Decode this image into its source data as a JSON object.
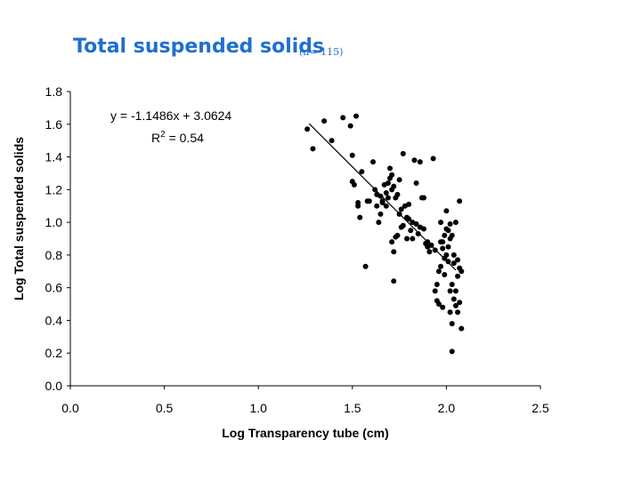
{
  "slide": {
    "title": "Total suspended solids",
    "subtitle": "(n= 115)",
    "title_color": "#1f6fd0"
  },
  "chart_data": {
    "type": "scatter",
    "title": "",
    "xlabel": "Log Transparency tube (cm)",
    "ylabel": "Log Total suspended solids",
    "xlim": [
      0.0,
      2.5
    ],
    "ylim": [
      0.0,
      1.8
    ],
    "xticks": [
      "0.0",
      "0.5",
      "1.0",
      "1.5",
      "2.0",
      "2.5"
    ],
    "yticks": [
      "0.0",
      "0.2",
      "0.4",
      "0.6",
      "0.8",
      "1.0",
      "1.2",
      "1.4",
      "1.6",
      "1.8"
    ],
    "grid": false,
    "legend": "none",
    "trendline": {
      "slope": -1.1486,
      "intercept": 3.0624,
      "x_range": [
        1.27,
        2.05
      ],
      "equation": "y = -1.1486x + 3.0624",
      "r2_prefix": "R",
      "r2_sup": "2",
      "r2_suffix": " = 0.54"
    },
    "marker_color": "#000000",
    "points": [
      [
        1.26,
        1.57
      ],
      [
        1.29,
        1.45
      ],
      [
        1.35,
        1.62
      ],
      [
        1.39,
        1.5
      ],
      [
        1.45,
        1.64
      ],
      [
        1.49,
        1.59
      ],
      [
        1.52,
        1.65
      ],
      [
        1.5,
        1.41
      ],
      [
        1.5,
        1.25
      ],
      [
        1.51,
        1.23
      ],
      [
        1.53,
        1.1
      ],
      [
        1.55,
        1.31
      ],
      [
        1.54,
        1.03
      ],
      [
        1.57,
        0.73
      ],
      [
        1.59,
        1.13
      ],
      [
        1.61,
        1.37
      ],
      [
        1.62,
        1.2
      ],
      [
        1.63,
        1.1
      ],
      [
        1.64,
        1.0
      ],
      [
        1.65,
        1.16
      ],
      [
        1.66,
        1.12
      ],
      [
        1.67,
        1.23
      ],
      [
        1.68,
        1.1
      ],
      [
        1.69,
        1.24
      ],
      [
        1.7,
        1.33
      ],
      [
        1.7,
        1.27
      ],
      [
        1.71,
        1.2
      ],
      [
        1.72,
        1.22
      ],
      [
        1.73,
        1.15
      ],
      [
        1.71,
        0.88
      ],
      [
        1.72,
        0.82
      ],
      [
        1.73,
        0.91
      ],
      [
        1.74,
        1.17
      ],
      [
        1.75,
        1.26
      ],
      [
        1.76,
        1.08
      ],
      [
        1.76,
        0.97
      ],
      [
        1.77,
        1.42
      ],
      [
        1.78,
        1.1
      ],
      [
        1.79,
        1.03
      ],
      [
        1.8,
        1.11
      ],
      [
        1.81,
        0.95
      ],
      [
        1.82,
        0.9
      ],
      [
        1.83,
        1.38
      ],
      [
        1.84,
        1.24
      ],
      [
        1.84,
        0.99
      ],
      [
        1.85,
        0.93
      ],
      [
        1.86,
        1.37
      ],
      [
        1.87,
        1.15
      ],
      [
        1.88,
        1.15
      ],
      [
        1.89,
        0.87
      ],
      [
        1.9,
        0.85
      ],
      [
        1.91,
        0.82
      ],
      [
        1.92,
        0.86
      ],
      [
        1.93,
        1.39
      ],
      [
        1.94,
        0.83
      ],
      [
        1.94,
        0.58
      ],
      [
        1.95,
        0.52
      ],
      [
        1.96,
        0.7
      ],
      [
        1.97,
        0.88
      ],
      [
        1.97,
        1.0
      ],
      [
        1.98,
        0.48
      ],
      [
        1.98,
        0.84
      ],
      [
        1.99,
        0.92
      ],
      [
        1.99,
        0.78
      ],
      [
        2.0,
        1.07
      ],
      [
        2.0,
        0.96
      ],
      [
        2.01,
        0.85
      ],
      [
        2.01,
        0.76
      ],
      [
        2.02,
        0.9
      ],
      [
        2.02,
        0.58
      ],
      [
        2.02,
        0.45
      ],
      [
        2.03,
        0.38
      ],
      [
        2.03,
        0.21
      ],
      [
        2.03,
        0.62
      ],
      [
        2.04,
        0.75
      ],
      [
        2.04,
        0.53
      ],
      [
        2.05,
        1.0
      ],
      [
        2.05,
        0.49
      ],
      [
        2.06,
        0.77
      ],
      [
        2.06,
        0.67
      ],
      [
        2.07,
        0.72
      ],
      [
        2.07,
        0.51
      ],
      [
        2.08,
        0.35
      ],
      [
        2.07,
        1.13
      ],
      [
        1.86,
        0.97
      ],
      [
        1.79,
        0.9
      ],
      [
        1.74,
        0.92
      ],
      [
        1.68,
        1.18
      ],
      [
        1.65,
        1.05
      ],
      [
        1.58,
        1.13
      ],
      [
        1.72,
        0.64
      ],
      [
        1.96,
        0.5
      ],
      [
        1.99,
        0.68
      ],
      [
        2.04,
        0.8
      ],
      [
        2.06,
        0.45
      ],
      [
        1.82,
        1.0
      ],
      [
        1.77,
        0.98
      ],
      [
        1.9,
        0.88
      ],
      [
        1.95,
        0.62
      ],
      [
        2.01,
        0.95
      ],
      [
        2.03,
        0.92
      ],
      [
        1.69,
        1.15
      ],
      [
        1.66,
        1.13
      ],
      [
        1.53,
        1.12
      ],
      [
        1.88,
        0.96
      ],
      [
        1.98,
        0.88
      ],
      [
        2.0,
        0.8
      ],
      [
        2.05,
        0.58
      ],
      [
        2.02,
        0.99
      ],
      [
        1.75,
        1.05
      ],
      [
        1.8,
        1.02
      ],
      [
        1.63,
        1.17
      ],
      [
        1.71,
        1.29
      ],
      [
        1.97,
        0.73
      ],
      [
        2.08,
        0.7
      ]
    ]
  }
}
